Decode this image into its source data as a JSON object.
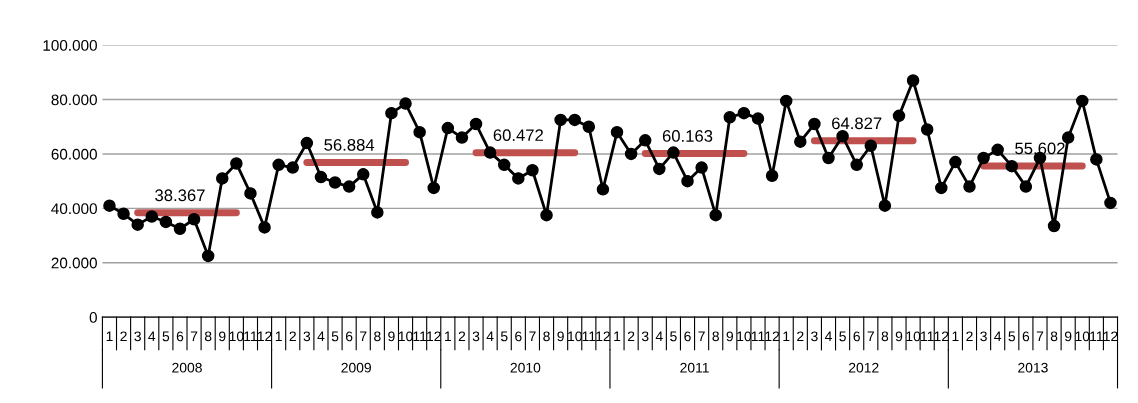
{
  "chart_data": {
    "type": "line",
    "categories": [
      "1",
      "2",
      "3",
      "4",
      "5",
      "6",
      "7",
      "8",
      "9",
      "10",
      "11",
      "12",
      "1",
      "2",
      "3",
      "4",
      "5",
      "6",
      "7",
      "8",
      "9",
      "10",
      "11",
      "12",
      "1",
      "2",
      "3",
      "4",
      "5",
      "6",
      "7",
      "8",
      "9",
      "10",
      "11",
      "12",
      "1",
      "2",
      "3",
      "4",
      "5",
      "6",
      "7",
      "8",
      "9",
      "10",
      "11",
      "12",
      "1",
      "2",
      "3",
      "4",
      "5",
      "6",
      "7",
      "8",
      "9",
      "10",
      "11",
      "12",
      "1",
      "2",
      "3",
      "4",
      "5",
      "6",
      "7",
      "8",
      "9",
      "10",
      "11",
      "12"
    ],
    "annotations": [
      "2008",
      "2009",
      "2010",
      "2011",
      "2012",
      "2013"
    ],
    "ylim": [
      0,
      100000
    ],
    "yticks": [
      0,
      {
        "value": 20000,
        "label": "20.000"
      },
      {
        "value": 40000,
        "label": "40.000"
      },
      {
        "value": 60000,
        "label": "60.000"
      },
      {
        "value": 80000,
        "label": "80.000"
      },
      {
        "value": 100000,
        "label": "100.000"
      }
    ],
    "grid": "y",
    "marker": "circle",
    "line_style": "solid",
    "series": [
      {
        "color": "#000000",
        "values": [
          41000,
          38000,
          34000,
          37000,
          35000,
          32500,
          36000,
          22500,
          51000,
          56500,
          45500,
          33000,
          56000,
          55000,
          64000,
          51500,
          49500,
          48000,
          52500,
          38500,
          75000,
          78500,
          68000,
          47500,
          69500,
          66000,
          71000,
          60500,
          56000,
          51000,
          54000,
          37500,
          72500,
          72500,
          70000,
          47000,
          68000,
          60000,
          65000,
          54500,
          60500,
          50000,
          55000,
          37500,
          73500,
          75000,
          73000,
          52000,
          79500,
          64500,
          71000,
          58500,
          66500,
          56000,
          63000,
          41000,
          74000,
          87000,
          69000,
          47500,
          57000,
          48000,
          58500,
          61500,
          55500,
          48000,
          58500,
          33500,
          66000,
          79500,
          58000,
          42000
        ]
      },
      {
        "color": "#c0504d",
        "marker": "none",
        "values": [
          null,
          null,
          38367,
          38367,
          38367,
          38367,
          38367,
          38367,
          38367,
          38367,
          null,
          null,
          null,
          null,
          null,
          null,
          null,
          null,
          null,
          null,
          null,
          null,
          null,
          null,
          null,
          null,
          null,
          null,
          null,
          null,
          null,
          null,
          null,
          null,
          null,
          null,
          null,
          null,
          null,
          null,
          null,
          null,
          null,
          null,
          null,
          null,
          null,
          null,
          null,
          null,
          null,
          null,
          null,
          null,
          null,
          null,
          null,
          null,
          null,
          null,
          null,
          null,
          null,
          null,
          null,
          null,
          null,
          null,
          null,
          null,
          null,
          null
        ],
        "value_labels": [
          null,
          null,
          null,
          null,
          null,
          "38.367",
          null,
          null,
          null,
          null,
          null,
          null,
          null,
          null,
          null,
          null,
          null,
          null,
          null,
          null,
          null,
          null,
          null,
          null,
          null,
          null,
          null,
          null,
          null,
          null,
          null,
          null,
          null,
          null,
          null,
          null,
          null,
          null,
          null,
          null,
          null,
          null,
          null,
          null,
          null,
          null,
          null,
          null,
          null,
          null,
          null,
          null,
          null,
          null,
          null,
          null,
          null,
          null,
          null,
          null,
          null,
          null,
          null,
          null,
          null,
          null,
          null,
          null,
          null,
          null,
          null,
          null
        ]
      },
      {
        "color": "#c0504d",
        "marker": "none",
        "values": [
          null,
          null,
          null,
          null,
          null,
          null,
          null,
          null,
          null,
          null,
          null,
          null,
          null,
          null,
          56884,
          56884,
          56884,
          56884,
          56884,
          56884,
          56884,
          56884,
          null,
          null,
          null,
          null,
          null,
          null,
          null,
          null,
          null,
          null,
          null,
          null,
          null,
          null,
          null,
          null,
          null,
          null,
          null,
          null,
          null,
          null,
          null,
          null,
          null,
          null,
          null,
          null,
          null,
          null,
          null,
          null,
          null,
          null,
          null,
          null,
          null,
          null,
          null,
          null,
          null,
          null,
          null,
          null,
          null,
          null,
          null,
          null,
          null,
          null
        ],
        "value_labels": [
          null,
          null,
          null,
          null,
          null,
          null,
          null,
          null,
          null,
          null,
          null,
          null,
          null,
          null,
          null,
          null,
          null,
          "56.884",
          null,
          null,
          null,
          null,
          null,
          null,
          null,
          null,
          null,
          null,
          null,
          null,
          null,
          null,
          null,
          null,
          null,
          null,
          null,
          null,
          null,
          null,
          null,
          null,
          null,
          null,
          null,
          null,
          null,
          null,
          null,
          null,
          null,
          null,
          null,
          null,
          null,
          null,
          null,
          null,
          null,
          null,
          null,
          null,
          null,
          null,
          null,
          null,
          null,
          null,
          null,
          null,
          null,
          null
        ]
      },
      {
        "color": "#c0504d",
        "marker": "none",
        "values": [
          null,
          null,
          null,
          null,
          null,
          null,
          null,
          null,
          null,
          null,
          null,
          null,
          null,
          null,
          null,
          null,
          null,
          null,
          null,
          null,
          null,
          null,
          null,
          null,
          null,
          null,
          60472,
          60472,
          60472,
          60472,
          60472,
          60472,
          60472,
          60472,
          null,
          null,
          null,
          null,
          null,
          null,
          null,
          null,
          null,
          null,
          null,
          null,
          null,
          null,
          null,
          null,
          null,
          null,
          null,
          null,
          null,
          null,
          null,
          null,
          null,
          null,
          null,
          null,
          null,
          null,
          null,
          null,
          null,
          null,
          null,
          null,
          null,
          null
        ],
        "value_labels": [
          null,
          null,
          null,
          null,
          null,
          null,
          null,
          null,
          null,
          null,
          null,
          null,
          null,
          null,
          null,
          null,
          null,
          null,
          null,
          null,
          null,
          null,
          null,
          null,
          null,
          null,
          null,
          null,
          null,
          "60.472",
          null,
          null,
          null,
          null,
          null,
          null,
          null,
          null,
          null,
          null,
          null,
          null,
          null,
          null,
          null,
          null,
          null,
          null,
          null,
          null,
          null,
          null,
          null,
          null,
          null,
          null,
          null,
          null,
          null,
          null,
          null,
          null,
          null,
          null,
          null,
          null,
          null,
          null,
          null,
          null,
          null,
          null
        ]
      },
      {
        "color": "#c0504d",
        "marker": "none",
        "values": [
          null,
          null,
          null,
          null,
          null,
          null,
          null,
          null,
          null,
          null,
          null,
          null,
          null,
          null,
          null,
          null,
          null,
          null,
          null,
          null,
          null,
          null,
          null,
          null,
          null,
          null,
          null,
          null,
          null,
          null,
          null,
          null,
          null,
          null,
          null,
          null,
          null,
          null,
          60163,
          60163,
          60163,
          60163,
          60163,
          60163,
          60163,
          60163,
          null,
          null,
          null,
          null,
          null,
          null,
          null,
          null,
          null,
          null,
          null,
          null,
          null,
          null,
          null,
          null,
          null,
          null,
          null,
          null,
          null,
          null,
          null,
          null,
          null,
          null
        ],
        "value_labels": [
          null,
          null,
          null,
          null,
          null,
          null,
          null,
          null,
          null,
          null,
          null,
          null,
          null,
          null,
          null,
          null,
          null,
          null,
          null,
          null,
          null,
          null,
          null,
          null,
          null,
          null,
          null,
          null,
          null,
          null,
          null,
          null,
          null,
          null,
          null,
          null,
          null,
          null,
          null,
          null,
          null,
          "60.163",
          null,
          null,
          null,
          null,
          null,
          null,
          null,
          null,
          null,
          null,
          null,
          null,
          null,
          null,
          null,
          null,
          null,
          null,
          null,
          null,
          null,
          null,
          null,
          null,
          null,
          null,
          null,
          null,
          null,
          null
        ]
      },
      {
        "color": "#c0504d",
        "marker": "none",
        "values": [
          null,
          null,
          null,
          null,
          null,
          null,
          null,
          null,
          null,
          null,
          null,
          null,
          null,
          null,
          null,
          null,
          null,
          null,
          null,
          null,
          null,
          null,
          null,
          null,
          null,
          null,
          null,
          null,
          null,
          null,
          null,
          null,
          null,
          null,
          null,
          null,
          null,
          null,
          null,
          null,
          null,
          null,
          null,
          null,
          null,
          null,
          null,
          null,
          null,
          null,
          64827,
          64827,
          64827,
          64827,
          64827,
          64827,
          64827,
          64827,
          null,
          null,
          null,
          null,
          null,
          null,
          null,
          null,
          null,
          null,
          null,
          null,
          null,
          null
        ],
        "value_labels": [
          null,
          null,
          null,
          null,
          null,
          null,
          null,
          null,
          null,
          null,
          null,
          null,
          null,
          null,
          null,
          null,
          null,
          null,
          null,
          null,
          null,
          null,
          null,
          null,
          null,
          null,
          null,
          null,
          null,
          null,
          null,
          null,
          null,
          null,
          null,
          null,
          null,
          null,
          null,
          null,
          null,
          null,
          null,
          null,
          null,
          null,
          null,
          null,
          null,
          null,
          null,
          null,
          null,
          "64.827",
          null,
          null,
          null,
          null,
          null,
          null,
          null,
          null,
          null,
          null,
          null,
          null,
          null,
          null,
          null,
          null,
          null,
          null
        ]
      },
      {
        "color": "#c0504d",
        "marker": "none",
        "values": [
          null,
          null,
          null,
          null,
          null,
          null,
          null,
          null,
          null,
          null,
          null,
          null,
          null,
          null,
          null,
          null,
          null,
          null,
          null,
          null,
          null,
          null,
          null,
          null,
          null,
          null,
          null,
          null,
          null,
          null,
          null,
          null,
          null,
          null,
          null,
          null,
          null,
          null,
          null,
          null,
          null,
          null,
          null,
          null,
          null,
          null,
          null,
          null,
          null,
          null,
          null,
          null,
          null,
          null,
          null,
          null,
          null,
          null,
          null,
          null,
          null,
          null,
          55602,
          55602,
          55602,
          55602,
          55602,
          55602,
          55602,
          55602,
          null,
          null
        ],
        "value_labels": [
          null,
          null,
          null,
          null,
          null,
          null,
          null,
          null,
          null,
          null,
          null,
          null,
          null,
          null,
          null,
          null,
          null,
          null,
          null,
          null,
          null,
          null,
          null,
          null,
          null,
          null,
          null,
          null,
          null,
          null,
          null,
          null,
          null,
          null,
          null,
          null,
          null,
          null,
          null,
          null,
          null,
          null,
          null,
          null,
          null,
          null,
          null,
          null,
          null,
          null,
          null,
          null,
          null,
          null,
          null,
          null,
          null,
          null,
          null,
          null,
          null,
          null,
          null,
          null,
          null,
          null,
          "55.602",
          null,
          null,
          null,
          null,
          null
        ]
      }
    ]
  }
}
